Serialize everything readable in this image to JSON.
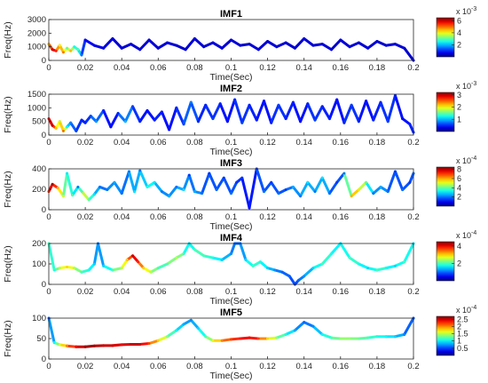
{
  "chart_data": [
    {
      "type": "line",
      "title": "IMF1",
      "xlabel": "Time(Sec)",
      "ylabel": "Freq(Hz)",
      "xlim": [
        0,
        0.2
      ],
      "ylim": [
        0,
        3000
      ],
      "xticks": [
        "0",
        "0.02",
        "0.04",
        "0.06",
        "0.08",
        "0.1",
        "0.12",
        "0.14",
        "0.16",
        "0.18",
        "0.2"
      ],
      "yticks": [
        "0",
        "1000",
        "2000",
        "3000"
      ],
      "colorbar": {
        "range": [
          0,
          0.0065
        ],
        "ticks": [
          "2",
          "4",
          "6"
        ],
        "tick_values": [
          0.002,
          0.004,
          0.006
        ],
        "exponent": "x 10",
        "exponent_power": "-3"
      },
      "series": [
        {
          "x": [
            0,
            0.002,
            0.004,
            0.006,
            0.008,
            0.01,
            0.012,
            0.014,
            0.016,
            0.018,
            0.02,
            0.025,
            0.03,
            0.035,
            0.04,
            0.045,
            0.05,
            0.055,
            0.06,
            0.065,
            0.07,
            0.075,
            0.08,
            0.085,
            0.09,
            0.095,
            0.1,
            0.105,
            0.11,
            0.115,
            0.12,
            0.125,
            0.13,
            0.135,
            0.14,
            0.145,
            0.15,
            0.155,
            0.16,
            0.165,
            0.17,
            0.175,
            0.18,
            0.185,
            0.19,
            0.195,
            0.2
          ],
          "y": [
            1200,
            800,
            700,
            1100,
            600,
            900,
            700,
            1000,
            800,
            400,
            1500,
            1100,
            900,
            1600,
            900,
            1200,
            800,
            1500,
            900,
            1300,
            1100,
            800,
            1600,
            1000,
            1300,
            900,
            1500,
            1100,
            1200,
            800,
            1400,
            1000,
            1300,
            900,
            1600,
            1100,
            1200,
            800,
            1500,
            1000,
            1300,
            900,
            1400,
            1100,
            1200,
            900,
            0
          ],
          "c": [
            0.0045,
            0.006,
            0.0055,
            0.004,
            0.005,
            0.003,
            0.0045,
            0.0025,
            0.003,
            0.0015,
            0.0008,
            0.0007,
            0.0006,
            0.0006,
            0.0005,
            0.0006,
            0.0005,
            0.0006,
            0.0005,
            0.0006,
            0.0005,
            0.0005,
            0.0006,
            0.0005,
            0.0006,
            0.0005,
            0.0006,
            0.0005,
            0.0005,
            0.0006,
            0.0005,
            0.0006,
            0.0005,
            0.0005,
            0.0006,
            0.0005,
            0.0006,
            0.0005,
            0.0005,
            0.0006,
            0.0005,
            0.0006,
            0.0005,
            0.0005,
            0.0006,
            0.0005,
            0.0005
          ]
        }
      ]
    },
    {
      "type": "line",
      "title": "IMF2",
      "xlabel": "Time(Sec)",
      "ylabel": "Freq(Hz)",
      "xlim": [
        0,
        0.2
      ],
      "ylim": [
        0,
        1500
      ],
      "xticks": [
        "0",
        "0.02",
        "0.04",
        "0.06",
        "0.08",
        "0.1",
        "0.12",
        "0.14",
        "0.16",
        "0.18",
        "0.2"
      ],
      "yticks": [
        "0",
        "500",
        "1000",
        "1500"
      ],
      "colorbar": {
        "range": [
          0,
          0.0032
        ],
        "ticks": [
          "1",
          "2",
          "3"
        ],
        "tick_values": [
          0.001,
          0.002,
          0.003
        ],
        "exponent": "x 10",
        "exponent_power": "-3"
      },
      "series": [
        {
          "x": [
            0,
            0.002,
            0.004,
            0.006,
            0.008,
            0.01,
            0.012,
            0.015,
            0.018,
            0.02,
            0.023,
            0.026,
            0.03,
            0.034,
            0.038,
            0.042,
            0.046,
            0.05,
            0.054,
            0.058,
            0.062,
            0.066,
            0.07,
            0.074,
            0.078,
            0.082,
            0.086,
            0.09,
            0.094,
            0.098,
            0.102,
            0.106,
            0.11,
            0.114,
            0.118,
            0.122,
            0.126,
            0.13,
            0.134,
            0.138,
            0.142,
            0.146,
            0.15,
            0.154,
            0.158,
            0.162,
            0.166,
            0.17,
            0.174,
            0.178,
            0.182,
            0.186,
            0.19,
            0.194,
            0.198,
            0.2
          ],
          "y": [
            600,
            350,
            250,
            500,
            150,
            300,
            450,
            150,
            550,
            450,
            700,
            500,
            900,
            300,
            800,
            500,
            1050,
            500,
            900,
            550,
            850,
            200,
            1000,
            400,
            1200,
            500,
            1100,
            600,
            1150,
            500,
            1300,
            450,
            1100,
            550,
            1250,
            450,
            1100,
            600,
            1200,
            500,
            1150,
            550,
            1050,
            600,
            1300,
            450,
            1100,
            500,
            1250,
            550,
            1200,
            500,
            1450,
            600,
            400,
            100
          ],
          "c": [
            0.0028,
            0.003,
            0.0022,
            0.0018,
            0.0025,
            0.0012,
            0.0008,
            0.0006,
            0.0005,
            0.0005,
            0.0006,
            0.0009,
            0.0005,
            0.0004,
            0.0005,
            0.001,
            0.0006,
            0.0005,
            0.0004,
            0.0005,
            0.0005,
            0.0004,
            0.0005,
            0.0006,
            0.0008,
            0.0005,
            0.0005,
            0.0006,
            0.0005,
            0.0004,
            0.0005,
            0.0006,
            0.0005,
            0.0005,
            0.0004,
            0.0005,
            0.0006,
            0.0005,
            0.0005,
            0.0004,
            0.0005,
            0.0006,
            0.0005,
            0.0005,
            0.0004,
            0.0005,
            0.0006,
            0.0005,
            0.0004,
            0.0005,
            0.0005,
            0.0006,
            0.0005,
            0.0004,
            0.0005,
            0.0005
          ]
        }
      ]
    },
    {
      "type": "line",
      "title": "IMF3",
      "xlabel": "Time(Sec)",
      "ylabel": "Freq(Hz)",
      "xlim": [
        0,
        0.2
      ],
      "ylim": [
        0,
        450
      ],
      "xticks": [
        "0",
        "0.02",
        "0.04",
        "0.06",
        "0.08",
        "0.1",
        "0.12",
        "0.14",
        "0.16",
        "0.18",
        "0.2"
      ],
      "yticks": [
        "0",
        "200",
        "400"
      ],
      "colorbar": {
        "range": [
          0,
          0.00085
        ],
        "ticks": [
          "2",
          "4",
          "6",
          "8"
        ],
        "tick_values": [
          0.0002,
          0.0004,
          0.0006,
          0.0008
        ],
        "exponent": "x 10",
        "exponent_power": "-4"
      },
      "series": [
        {
          "x": [
            0,
            0.002,
            0.005,
            0.008,
            0.01,
            0.013,
            0.016,
            0.019,
            0.022,
            0.025,
            0.028,
            0.032,
            0.036,
            0.04,
            0.044,
            0.047,
            0.05,
            0.054,
            0.058,
            0.062,
            0.066,
            0.07,
            0.074,
            0.077,
            0.08,
            0.084,
            0.088,
            0.092,
            0.096,
            0.1,
            0.103,
            0.106,
            0.11,
            0.114,
            0.118,
            0.122,
            0.126,
            0.13,
            0.134,
            0.138,
            0.142,
            0.146,
            0.15,
            0.154,
            0.158,
            0.162,
            0.166,
            0.17,
            0.174,
            0.178,
            0.182,
            0.186,
            0.19,
            0.194,
            0.198,
            0.2
          ],
          "y": [
            200,
            280,
            240,
            150,
            400,
            160,
            250,
            180,
            110,
            170,
            250,
            220,
            300,
            180,
            420,
            200,
            430,
            250,
            300,
            200,
            150,
            250,
            220,
            380,
            200,
            180,
            400,
            220,
            350,
            180,
            300,
            350,
            20,
            450,
            200,
            300,
            180,
            220,
            250,
            150,
            300,
            200,
            350,
            180,
            300,
            400,
            150,
            220,
            300,
            180,
            250,
            200,
            420,
            220,
            300,
            400
          ],
          "c": [
            0.0007,
            0.00082,
            0.0006,
            0.0005,
            0.0003,
            0.0004,
            0.0002,
            0.00055,
            0.0004,
            0.0003,
            0.0002,
            0.0002,
            0.00025,
            0.0002,
            0.0002,
            0.0003,
            0.0002,
            0.00035,
            0.0003,
            0.0002,
            0.00025,
            0.0002,
            0.0003,
            0.00015,
            0.00025,
            0.0002,
            0.00015,
            0.0002,
            0.00015,
            0.0002,
            0.00015,
            0.00015,
            0.0001,
            0.00015,
            0.0002,
            0.00015,
            0.0002,
            0.00015,
            0.00025,
            0.0002,
            0.0003,
            0.0002,
            0.0003,
            0.0002,
            0.00015,
            0.0002,
            0.0006,
            0.00055,
            0.0004,
            0.0002,
            0.00025,
            0.0002,
            0.00015,
            0.0002,
            0.00015,
            0.0002
          ]
        }
      ]
    },
    {
      "type": "line",
      "title": "IMF4",
      "xlabel": "Time(Sec)",
      "ylabel": "Freq(Hz)",
      "xlim": [
        0,
        0.2
      ],
      "ylim": [
        0,
        200
      ],
      "xticks": [
        "0",
        "0.02",
        "0.04",
        "0.06",
        "0.08",
        "0.1",
        "0.12",
        "0.14",
        "0.16",
        "0.18",
        "0.2"
      ],
      "yticks": [
        "0",
        "100",
        "200"
      ],
      "colorbar": {
        "range": [
          0,
          0.00045
        ],
        "ticks": [
          "2",
          "4"
        ],
        "tick_values": [
          0.0002,
          0.0004
        ],
        "exponent": "x 10",
        "exponent_power": "-4"
      },
      "series": [
        {
          "x": [
            0,
            0.003,
            0.006,
            0.01,
            0.014,
            0.018,
            0.022,
            0.025,
            0.027,
            0.03,
            0.035,
            0.04,
            0.043,
            0.046,
            0.049,
            0.052,
            0.056,
            0.06,
            0.065,
            0.07,
            0.074,
            0.077,
            0.08,
            0.085,
            0.09,
            0.095,
            0.1,
            0.102,
            0.105,
            0.108,
            0.112,
            0.116,
            0.12,
            0.124,
            0.128,
            0.132,
            0.135,
            0.137,
            0.14,
            0.145,
            0.15,
            0.155,
            0.16,
            0.165,
            0.17,
            0.175,
            0.18,
            0.185,
            0.19,
            0.195,
            0.2
          ],
          "y": [
            200,
            70,
            80,
            85,
            80,
            60,
            70,
            100,
            200,
            90,
            70,
            80,
            120,
            140,
            110,
            80,
            60,
            80,
            100,
            130,
            150,
            200,
            170,
            140,
            130,
            120,
            150,
            200,
            200,
            120,
            90,
            110,
            80,
            70,
            60,
            40,
            0,
            20,
            40,
            80,
            100,
            150,
            200,
            130,
            100,
            80,
            70,
            80,
            90,
            110,
            200
          ],
          "c": [
            0.0002,
            0.00018,
            0.00025,
            0.0003,
            0.00025,
            0.0002,
            0.00018,
            0.00015,
            0.0001,
            0.00015,
            0.0002,
            0.00025,
            0.0003,
            0.00042,
            0.00038,
            0.0003,
            0.00025,
            0.0002,
            0.0002,
            0.00025,
            0.0002,
            0.00015,
            0.0002,
            0.0002,
            0.00018,
            0.00015,
            0.00012,
            0.0001,
            0.0001,
            0.00015,
            0.0002,
            0.00018,
            0.00015,
            0.00012,
            0.0001,
            0.0001,
            8e-05,
            0.0001,
            0.00012,
            0.00015,
            0.0002,
            0.00018,
            0.00015,
            0.0002,
            0.00018,
            0.00015,
            0.0002,
            0.00018,
            0.00015,
            0.0002,
            0.00015
          ]
        }
      ]
    },
    {
      "type": "line",
      "title": "IMF5",
      "xlabel": "Time(Sec)",
      "ylabel": "Freq(Hz)",
      "xlim": [
        0,
        0.2
      ],
      "ylim": [
        0,
        100
      ],
      "xticks": [
        "0",
        "0.02",
        "0.04",
        "0.06",
        "0.08",
        "0.1",
        "0.12",
        "0.14",
        "0.16",
        "0.18",
        "0.2"
      ],
      "yticks": [
        "0",
        "50",
        "100"
      ],
      "colorbar": {
        "range": [
          0,
          0.00027
        ],
        "ticks": [
          "0.5",
          "1",
          "1.5",
          "2",
          "2.5"
        ],
        "tick_values": [
          5e-05,
          0.0001,
          0.00015,
          0.0002,
          0.00025
        ],
        "exponent": "x 10",
        "exponent_power": "-4"
      },
      "series": [
        {
          "x": [
            0,
            0.003,
            0.006,
            0.01,
            0.015,
            0.02,
            0.025,
            0.03,
            0.035,
            0.04,
            0.045,
            0.05,
            0.055,
            0.06,
            0.065,
            0.07,
            0.074,
            0.078,
            0.082,
            0.086,
            0.09,
            0.095,
            0.1,
            0.105,
            0.11,
            0.115,
            0.12,
            0.125,
            0.13,
            0.135,
            0.14,
            0.145,
            0.15,
            0.155,
            0.16,
            0.165,
            0.17,
            0.175,
            0.18,
            0.185,
            0.19,
            0.195,
            0.2
          ],
          "y": [
            100,
            40,
            35,
            32,
            30,
            30,
            32,
            33,
            33,
            35,
            36,
            36,
            38,
            45,
            55,
            70,
            85,
            95,
            75,
            55,
            45,
            45,
            48,
            50,
            52,
            50,
            50,
            52,
            60,
            70,
            90,
            80,
            60,
            52,
            50,
            50,
            50,
            52,
            55,
            55,
            55,
            60,
            100
          ],
          "c": [
            5e-05,
            0.0001,
            0.00016,
            0.0002,
            0.00024,
            0.00026,
            0.00026,
            0.00025,
            0.00025,
            0.00024,
            0.00025,
            0.00025,
            0.00022,
            0.00018,
            0.00014,
            0.0001,
            8e-05,
            7e-05,
            9e-05,
            0.00012,
            0.00016,
            0.0002,
            0.00022,
            0.00023,
            0.00024,
            0.00022,
            0.00018,
            0.00014,
            0.00011,
            8e-05,
            6e-05,
            7e-05,
            0.0001,
            0.00012,
            0.00014,
            0.00014,
            0.00013,
            0.00012,
            0.00011,
            0.0001,
            9e-05,
            7e-05,
            5e-05
          ]
        }
      ]
    }
  ]
}
